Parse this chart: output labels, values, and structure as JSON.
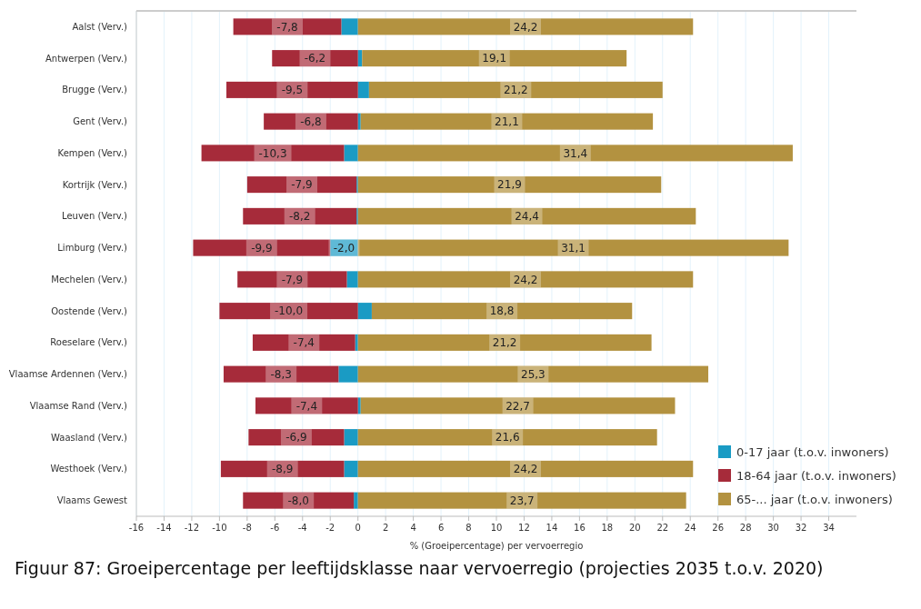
{
  "chart_data": {
    "type": "bar",
    "orientation": "horizontal",
    "stacked": true,
    "categories": [
      "Aalst (Verv.)",
      "Antwerpen (Verv.)",
      "Brugge (Verv.)",
      "Gent (Verv.)",
      "Kempen (Verv.)",
      "Kortrijk (Verv.)",
      "Leuven (Verv.)",
      "Limburg (Verv.)",
      "Mechelen (Verv.)",
      "Oostende (Verv.)",
      "Roeselare (Verv.)",
      "Vlaamse Ardennen (Verv.)",
      "Vlaamse Rand (Verv.)",
      "Waasland (Verv.)",
      "Westhoek (Verv.)",
      "Vlaams Gewest"
    ],
    "series": [
      {
        "name": "0-17 jaar (t.o.v. inwoners)",
        "color": "#1a9bc4",
        "values": [
          -1.2,
          0.3,
          0.8,
          0.2,
          -1.0,
          -0.1,
          -0.1,
          -2.0,
          -0.8,
          1.0,
          -0.2,
          -1.4,
          0.2,
          -1.0,
          -1.0,
          -0.3
        ],
        "value_labels": [
          null,
          null,
          null,
          null,
          null,
          null,
          null,
          "-2,0",
          null,
          null,
          null,
          null,
          null,
          null,
          null,
          null
        ]
      },
      {
        "name": "18-64 jaar (t.o.v. inwoners)",
        "color": "#a62b3a",
        "values": [
          -7.8,
          -6.2,
          -9.5,
          -6.8,
          -10.3,
          -7.9,
          -8.2,
          -9.9,
          -7.9,
          -10.0,
          -7.4,
          -8.3,
          -7.4,
          -6.9,
          -8.9,
          -8.0
        ],
        "value_labels": [
          "-7,8",
          "-6,2",
          "-9,5",
          "-6,8",
          "-10,3",
          "-7,9",
          "-8,2",
          "-9,9",
          "-7,9",
          "-10,0",
          "-7,4",
          "-8,3",
          "-7,4",
          "-6,9",
          "-8,9",
          "-8,0"
        ]
      },
      {
        "name": "65-... jaar (t.o.v. inwoners)",
        "color": "#b39240",
        "values": [
          24.2,
          19.1,
          21.2,
          21.1,
          31.4,
          21.9,
          24.4,
          31.1,
          24.2,
          18.8,
          21.2,
          25.3,
          22.7,
          21.6,
          24.2,
          23.7
        ],
        "value_labels": [
          "24,2",
          "19,1",
          "21,2",
          "21,1",
          "31,4",
          "21,9",
          "24,4",
          "31,1",
          "24,2",
          "18,8",
          "21,2",
          "25,3",
          "22,7",
          "21,6",
          "24,2",
          "23,7"
        ]
      }
    ],
    "xlim": [
      -16,
      36
    ],
    "xticks": [
      -16,
      -14,
      -12,
      -10,
      -8,
      -6,
      -4,
      -2,
      0,
      2,
      4,
      6,
      8,
      10,
      12,
      14,
      16,
      18,
      20,
      22,
      24,
      26,
      28,
      30,
      32,
      34
    ],
    "xlabel": "% (Groeipercentage) per vervoerregio",
    "grid": "x",
    "legend": "bottom right",
    "annotations": [
      "Figuur 87: Groeipercentage per leeftijdsklasse naar vervoerregio (projecties 2035 t.o.v. 2020)"
    ]
  }
}
